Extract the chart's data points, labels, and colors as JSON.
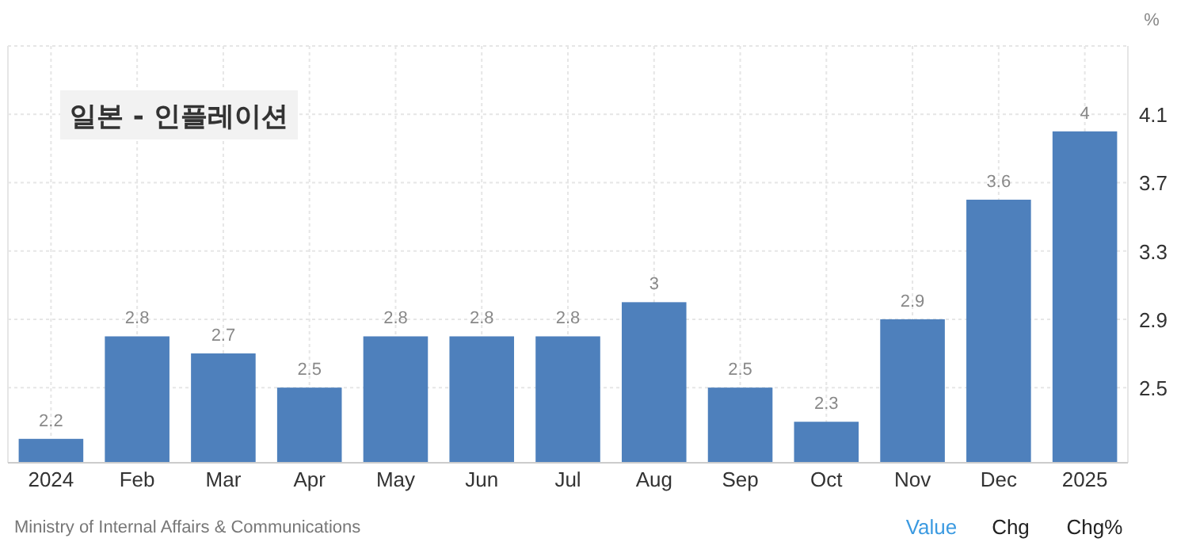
{
  "chart_data": {
    "type": "bar",
    "title": "일본 - 인플레이션",
    "ylabel": "%",
    "categories": [
      "2024",
      "Feb",
      "Mar",
      "Apr",
      "May",
      "Jun",
      "Jul",
      "Aug",
      "Sep",
      "Oct",
      "Nov",
      "Dec",
      "2025"
    ],
    "values": [
      2.2,
      2.8,
      2.7,
      2.5,
      2.8,
      2.8,
      2.8,
      3,
      2.5,
      2.3,
      2.9,
      3.6,
      4
    ],
    "color": "#4e80bc",
    "data_labels": true,
    "ylim": [
      2.06,
      4.5
    ],
    "yticks": [
      2.5,
      2.9,
      3.3,
      3.7,
      4.1
    ],
    "grid": true,
    "annotations": [
      "Ministry of Internal Affairs & Communications",
      "Value",
      "Chg",
      "Chg%"
    ]
  }
}
